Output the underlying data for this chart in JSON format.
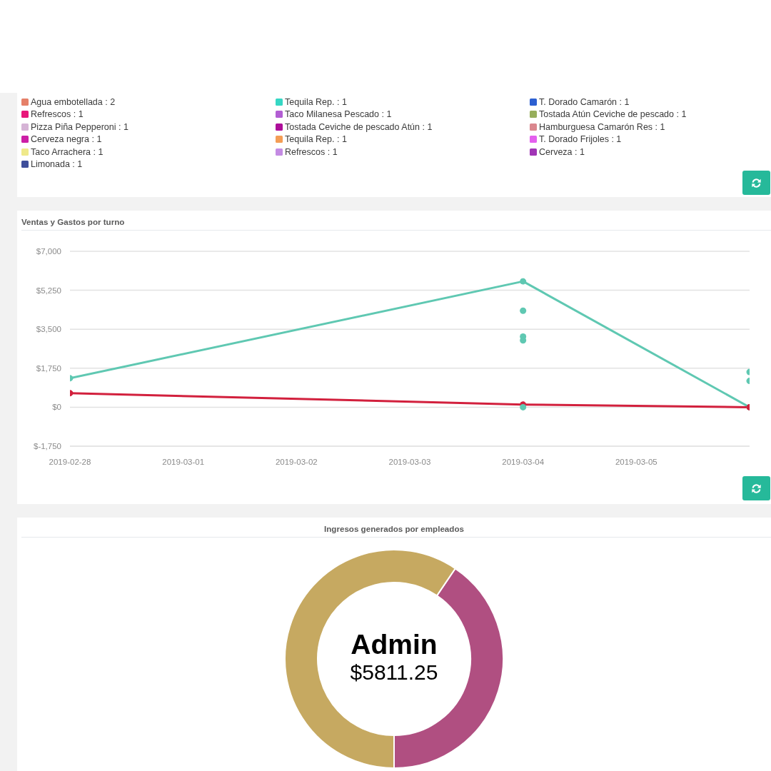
{
  "chart_data": [
    {
      "type": "other",
      "annotations": [
        "Agua embotellada : 2",
        "Tequila Rep. : 1",
        "T. Dorado Camarón : 1",
        "Refrescos : 1",
        "Taco Milanesa Pescado : 1",
        "Tostada Atún Ceviche de pescado : 1",
        "Pizza Piña Pepperoni : 1",
        "Tostada Ceviche de pescado Atún : 1",
        "Hamburguesa Camarón Res : 1",
        "Cerveza negra : 1",
        "Tequila Rep. : 1",
        "T. Dorado Frijoles : 1",
        "Taco Arrachera : 1",
        "Refrescos : 1",
        "Cerveza : 1",
        "Limonada : 1"
      ]
    },
    {
      "type": "line",
      "title": "Ventas y Gastos por turno",
      "xlim": [
        "2019-02-28",
        "2019-03-06"
      ],
      "xticks": [
        "2019-02-28",
        "2019-03-01",
        "2019-03-02",
        "2019-03-03",
        "2019-03-04",
        "2019-03-05"
      ],
      "ylim": [
        -1750,
        7000
      ],
      "yticks": [
        {
          "value": -1750,
          "label": "$-1,750"
        },
        {
          "value": 0,
          "label": "$0"
        },
        {
          "value": 1750,
          "label": "$1,750"
        },
        {
          "value": 3500,
          "label": "$3,500"
        },
        {
          "value": 5250,
          "label": "$5,250"
        },
        {
          "value": 7000,
          "label": "$7,000"
        }
      ],
      "grid": "y",
      "marker": "circle",
      "series": [
        {
          "color": "#5fc8b2",
          "x": [
            "2019-02-28",
            "2019-03-04",
            "2019-03-06"
          ],
          "values": [
            1300,
            5650,
            0
          ]
        },
        {
          "color": "#d2203d",
          "x": [
            "2019-02-28",
            "2019-03-04",
            "2019-03-06"
          ],
          "values": [
            630,
            120,
            0
          ]
        },
        {
          "type": "scatter",
          "color": "#5fc8b2",
          "x": [
            "2019-03-04",
            "2019-03-04",
            "2019-03-04",
            "2019-03-04",
            "2019-03-06",
            "2019-03-06"
          ],
          "values": [
            4330,
            3170,
            3000,
            0,
            1580,
            1180
          ]
        }
      ]
    },
    {
      "type": "donut",
      "title": "Ingresos generados por empleados",
      "categories": [
        null,
        "Admin"
      ],
      "values": [
        3960,
        5811.25
      ],
      "colors": [
        "#b04f81",
        "#c6a961"
      ],
      "value_labels": [
        null,
        "$5811.25"
      ]
    }
  ]
}
